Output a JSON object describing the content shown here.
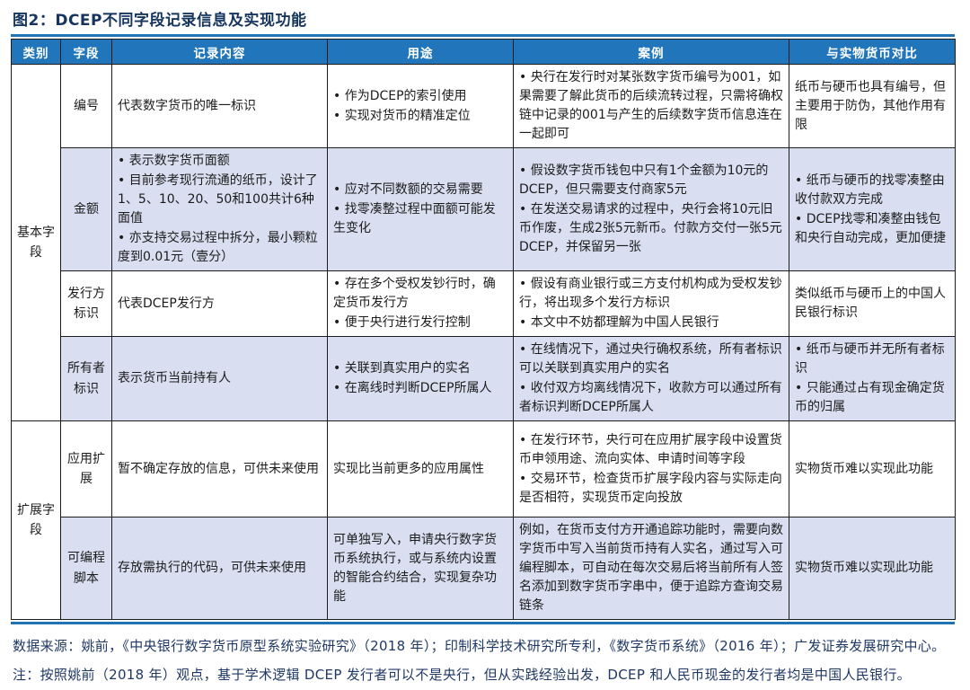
{
  "title": "图2：DCEP不同字段记录信息及实现功能",
  "colors": {
    "header_bg": "#2176bb",
    "header_text": "#ffffff",
    "shaded_row_bg": "#d9def0",
    "title_text": "#15355e",
    "footer_text": "#1f3864",
    "rule_blue": "#2273b4",
    "border": "#1d1d1d"
  },
  "table": {
    "headers": [
      "类别",
      "字段",
      "记录内容",
      "用途",
      "案例",
      "与实物货币对比"
    ],
    "categories": [
      {
        "label": "基本字段",
        "rows": 4
      },
      {
        "label": "扩展字段",
        "rows": 2
      }
    ],
    "rows": [
      {
        "field": "编号",
        "shaded": false,
        "height": 85,
        "cells": {
          "content": [
            {
              "text": "代表数字货币的唯一标识",
              "bullet": false
            }
          ],
          "usage": [
            {
              "text": "作为DCEP的索引使用",
              "bullet": true
            },
            {
              "text": "实现对货币的精准定位",
              "bullet": true
            }
          ],
          "case": [
            {
              "text": "央行在发行时对某张数字货币编号为001，如果需要了解此货币的后续流转过程，只需将确权链中记录的001与产生的后续数字货币信息连在一起即可",
              "bullet": true
            }
          ],
          "compare": [
            {
              "text": "纸币与硬币也具有编号，但主要用于防伪，其他作用有限",
              "bullet": false
            }
          ]
        }
      },
      {
        "field": "金额",
        "shaded": true,
        "height": 125,
        "cells": {
          "content": [
            {
              "text": "表示数字货币面额",
              "bullet": true
            },
            {
              "text": "目前参考现行流通的纸币，设计了1、5、10、20、50和100共计6种面值",
              "bullet": true
            },
            {
              "text": "亦支持交易过程中拆分，最小颗粒度到0.01元（壹分）",
              "bullet": true
            }
          ],
          "usage": [
            {
              "text": "应对不同数额的交易需要",
              "bullet": true
            },
            {
              "text": "找零凑整过程中面额可能发生变化",
              "bullet": true
            }
          ],
          "case": [
            {
              "text": "假设数字货币钱包中只有1个金额为10元的DCEP，但只需要支付商家5元",
              "bullet": true
            },
            {
              "text": "在发送交易请求的过程中，央行会将10元旧币作废，生成2张5元新币。付款方交付一张5元DCEP，并保留另一张",
              "bullet": true
            }
          ],
          "compare": [
            {
              "text": "纸币与硬币的找零凑整由收付款双方完成",
              "bullet": true
            },
            {
              "text": "DCEP找零和凑整由钱包和央行自动完成，更加便捷",
              "bullet": true
            }
          ]
        }
      },
      {
        "field": "发行方标识",
        "shaded": false,
        "height": 72,
        "cells": {
          "content": [
            {
              "text": "代表DCEP发行方",
              "bullet": false
            }
          ],
          "usage": [
            {
              "text": "存在多个受权发钞行时，确定货币发行方",
              "bullet": true
            },
            {
              "text": "便于央行进行发行控制",
              "bullet": true
            }
          ],
          "case": [
            {
              "text": "假设有商业银行或三方支付机构成为受权发钞行，将出现多个发行方标识",
              "bullet": true
            },
            {
              "text": "本文中不妨都理解为中国人民银行",
              "bullet": true
            }
          ],
          "compare": [
            {
              "text": "类似纸币与硬币上的中国人民银行标识",
              "bullet": false
            }
          ]
        }
      },
      {
        "field": "所有者标识",
        "shaded": true,
        "height": 85,
        "cells": {
          "content": [
            {
              "text": "表示货币当前持有人",
              "bullet": false
            }
          ],
          "usage": [
            {
              "text": "关联到真实用户的实名",
              "bullet": true
            },
            {
              "text": "在离线时判断DCEP所属人",
              "bullet": true
            }
          ],
          "case": [
            {
              "text": "在线情况下，通过央行确权系统，所有者标识可以关联到真实用户的实名",
              "bullet": true
            },
            {
              "text": "收付双方均离线情况下，收款方可以通过所有者标识判断DCEP所属人",
              "bullet": true
            }
          ],
          "compare": [
            {
              "text": "纸币与硬币并无所有者标识",
              "bullet": true
            },
            {
              "text": "只能通过占有现金确定货币的归属",
              "bullet": true
            }
          ]
        }
      },
      {
        "field": "应用扩展",
        "shaded": false,
        "height": 107,
        "cells": {
          "content": [
            {
              "text": "暂不确定存放的信息，可供未来使用",
              "bullet": false
            }
          ],
          "usage": [
            {
              "text": "实现比当前更多的应用属性",
              "bullet": false
            }
          ],
          "case": [
            {
              "text": "在发行环节，央行可在应用扩展字段中设置货币申领用途、流向实体、申请时间等字段",
              "bullet": true
            },
            {
              "text": "交易环节，检查货币扩展字段内容与实际走向是否相符，实现货币定向投放",
              "bullet": true
            }
          ],
          "compare": [
            {
              "text": "实物货币难以实现此功能",
              "bullet": false
            }
          ]
        }
      },
      {
        "field": "可编程脚本",
        "shaded": true,
        "height": 113,
        "cells": {
          "content": [
            {
              "text": "存放需执行的代码，可供未来使用",
              "bullet": false
            }
          ],
          "usage": [
            {
              "text": "可单独写入，申请央行数字货币系统执行，或与系统内设置的智能合约结合，实现复杂功能",
              "bullet": false
            }
          ],
          "case": [
            {
              "text": "例如，在货币支付方开通追踪功能时，需要向数字货币中写入当前货币持有人实名，通过写入可编程脚本，可自动在每次交易后将当前所有人签名添加到数字货币字串中，便于追踪方查询交易链条",
              "bullet": false
            }
          ],
          "compare": [
            {
              "text": "实物货币难以实现此功能",
              "bullet": false
            }
          ]
        }
      }
    ]
  },
  "footer": "数据来源：姚前，《中央银行数字货币原型系统实验研究》（2018 年）；印制科学技术研究所专利，《数字货币系统》（2016 年）；广发证券发展研究中心。注：按照姚前（2018 年）观点，基于学术逻辑 DCEP 发行者可以不是央行，但从实践经验出发，DCEP 和人民币现金的发行者均是中国人民银行。"
}
